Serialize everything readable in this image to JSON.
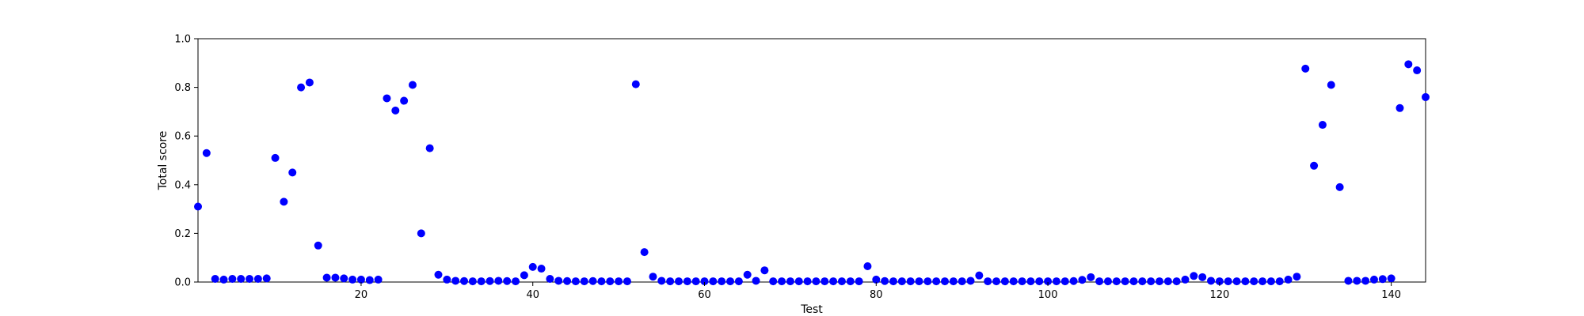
{
  "chart_data": {
    "type": "scatter",
    "xlabel": "Test",
    "ylabel": "Total score",
    "xlim": [
      1,
      144
    ],
    "ylim": [
      0.0,
      1.0
    ],
    "xticks": [
      20,
      40,
      60,
      80,
      100,
      120,
      140
    ],
    "xtick_labels": [
      "20",
      "40",
      "60",
      "80",
      "100",
      "120",
      "140"
    ],
    "yticks": [
      0.0,
      0.2,
      0.4,
      0.6,
      0.8,
      1.0
    ],
    "ytick_labels": [
      "0.0",
      "0.2",
      "0.4",
      "0.6",
      "0.8",
      "1.0"
    ],
    "grid": false,
    "marker_color": "#0000ff",
    "series": [
      {
        "x": [
          1,
          2,
          3,
          4,
          5,
          6,
          7,
          8,
          9,
          10,
          11,
          12,
          13,
          14,
          15,
          16,
          17,
          18,
          19,
          20,
          21,
          22,
          23,
          24,
          25,
          26,
          27,
          28,
          29,
          30,
          31,
          32,
          33,
          34,
          35,
          36,
          37,
          38,
          39,
          40,
          41,
          42,
          43,
          44,
          45,
          46,
          47,
          48,
          49,
          50,
          51,
          52,
          53,
          54,
          55,
          56,
          57,
          58,
          59,
          60,
          61,
          62,
          63,
          64,
          65,
          66,
          67,
          68,
          69,
          70,
          71,
          72,
          73,
          74,
          75,
          76,
          77,
          78,
          79,
          80,
          81,
          82,
          83,
          84,
          85,
          86,
          87,
          88,
          89,
          90,
          91,
          92,
          93,
          94,
          95,
          96,
          97,
          98,
          99,
          100,
          101,
          102,
          103,
          104,
          105,
          106,
          107,
          108,
          109,
          110,
          111,
          112,
          113,
          114,
          115,
          116,
          117,
          118,
          119,
          120,
          121,
          122,
          123,
          124,
          125,
          126,
          127,
          128,
          129,
          130,
          131,
          132,
          133,
          134,
          135,
          136,
          137,
          138,
          139,
          140,
          141,
          142,
          143,
          144
        ],
        "y": [
          0.31,
          0.53,
          0.013,
          0.01,
          0.013,
          0.013,
          0.013,
          0.013,
          0.015,
          0.51,
          0.33,
          0.45,
          0.8,
          0.82,
          0.15,
          0.018,
          0.018,
          0.015,
          0.01,
          0.01,
          0.008,
          0.01,
          0.755,
          0.705,
          0.745,
          0.81,
          0.2,
          0.55,
          0.03,
          0.01,
          0.005,
          0.004,
          0.003,
          0.003,
          0.004,
          0.005,
          0.004,
          0.003,
          0.028,
          0.062,
          0.055,
          0.013,
          0.005,
          0.004,
          0.003,
          0.003,
          0.004,
          0.003,
          0.003,
          0.003,
          0.003,
          0.813,
          0.123,
          0.022,
          0.005,
          0.003,
          0.003,
          0.003,
          0.003,
          0.003,
          0.003,
          0.003,
          0.003,
          0.003,
          0.03,
          0.005,
          0.048,
          0.003,
          0.003,
          0.003,
          0.003,
          0.003,
          0.003,
          0.003,
          0.003,
          0.003,
          0.003,
          0.003,
          0.065,
          0.01,
          0.004,
          0.003,
          0.003,
          0.003,
          0.003,
          0.003,
          0.003,
          0.003,
          0.003,
          0.003,
          0.005,
          0.027,
          0.003,
          0.003,
          0.003,
          0.003,
          0.003,
          0.003,
          0.003,
          0.003,
          0.003,
          0.003,
          0.004,
          0.009,
          0.02,
          0.003,
          0.003,
          0.003,
          0.003,
          0.003,
          0.003,
          0.003,
          0.003,
          0.003,
          0.003,
          0.01,
          0.025,
          0.02,
          0.005,
          0.003,
          0.003,
          0.003,
          0.003,
          0.003,
          0.003,
          0.003,
          0.003,
          0.01,
          0.022,
          0.877,
          0.478,
          0.646,
          0.81,
          0.39,
          0.005,
          0.005,
          0.005,
          0.01,
          0.012,
          0.015,
          0.715,
          0.895,
          0.87,
          0.76
        ]
      }
    ]
  }
}
